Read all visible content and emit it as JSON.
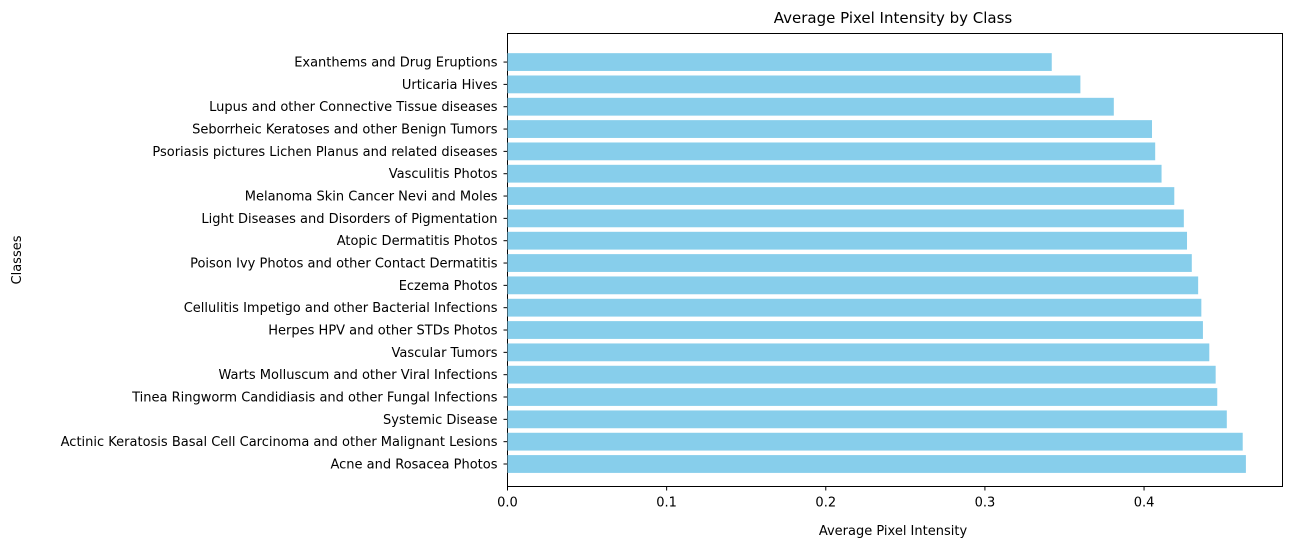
{
  "chart_data": {
    "type": "bar",
    "orientation": "horizontal",
    "title": "Average Pixel Intensity by Class",
    "xlabel": "Average Pixel Intensity",
    "ylabel": "Classes",
    "xlim": [
      0,
      0.487
    ],
    "xticks": [
      {
        "value": 0.0,
        "label": "0.0"
      },
      {
        "value": 0.1,
        "label": "0.1"
      },
      {
        "value": 0.2,
        "label": "0.2"
      },
      {
        "value": 0.3,
        "label": "0.3"
      },
      {
        "value": 0.4,
        "label": "0.4"
      }
    ],
    "grid": false,
    "bar_color": "#87CEEB",
    "categories": [
      "Acne and Rosacea Photos",
      "Actinic Keratosis Basal Cell Carcinoma and other Malignant Lesions",
      "Systemic Disease",
      "Tinea Ringworm Candidiasis and other Fungal Infections",
      "Warts Molluscum and other Viral Infections",
      "Vascular Tumors",
      "Herpes HPV and other STDs Photos",
      "Cellulitis Impetigo and other Bacterial Infections",
      "Eczema Photos",
      "Poison Ivy Photos and other Contact Dermatitis",
      "Atopic Dermatitis Photos",
      "Light Diseases and Disorders of Pigmentation",
      "Melanoma Skin Cancer Nevi and Moles",
      "Vasculitis Photos",
      "Psoriasis pictures Lichen Planus and related diseases",
      "Seborrheic Keratoses and other Benign Tumors",
      "Lupus and other Connective Tissue diseases",
      "Urticaria Hives",
      "Exanthems and Drug Eruptions"
    ],
    "values": [
      0.464,
      0.462,
      0.452,
      0.446,
      0.445,
      0.441,
      0.437,
      0.436,
      0.434,
      0.43,
      0.427,
      0.425,
      0.419,
      0.411,
      0.407,
      0.405,
      0.381,
      0.36,
      0.342
    ]
  }
}
